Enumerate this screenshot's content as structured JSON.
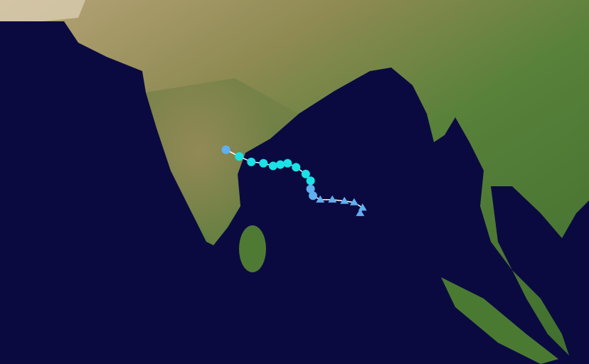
{
  "map": {
    "colors": {
      "ocean": "#0b0a40",
      "land_green": "#4f7a34",
      "land_tan": "#a8955f",
      "track_line": "#ffffff",
      "tropical_storm": "#19e3e6",
      "depression": "#5fb0f0",
      "low": "#5fb0f0"
    },
    "track": [
      {
        "lat": 8.9,
        "lon": 90.2,
        "marker": "triangle",
        "category": "low"
      },
      {
        "lat": 9.3,
        "lon": 90.4,
        "marker": "triangle",
        "category": "low"
      },
      {
        "lat": 9.7,
        "lon": 89.7,
        "marker": "triangle",
        "category": "low"
      },
      {
        "lat": 9.8,
        "lon": 88.9,
        "marker": "triangle",
        "category": "low"
      },
      {
        "lat": 9.9,
        "lon": 87.9,
        "marker": "triangle",
        "category": "low"
      },
      {
        "lat": 9.9,
        "lon": 86.9,
        "marker": "triangle",
        "category": "low"
      },
      {
        "lat": 10.2,
        "lon": 86.3,
        "marker": "circle",
        "category": "depression"
      },
      {
        "lat": 10.7,
        "lon": 86.1,
        "marker": "circle",
        "category": "depression"
      },
      {
        "lat": 11.3,
        "lon": 86.1,
        "marker": "circle",
        "category": "tropical_storm"
      },
      {
        "lat": 11.8,
        "lon": 85.7,
        "marker": "circle",
        "category": "tropical_storm"
      },
      {
        "lat": 12.3,
        "lon": 84.9,
        "marker": "circle",
        "category": "tropical_storm"
      },
      {
        "lat": 12.6,
        "lon": 84.2,
        "marker": "circle",
        "category": "tropical_storm"
      },
      {
        "lat": 12.5,
        "lon": 83.6,
        "marker": "circle",
        "category": "tropical_storm"
      },
      {
        "lat": 12.4,
        "lon": 83.0,
        "marker": "circle",
        "category": "tropical_storm"
      },
      {
        "lat": 12.6,
        "lon": 82.2,
        "marker": "circle",
        "category": "tropical_storm"
      },
      {
        "lat": 12.7,
        "lon": 81.2,
        "marker": "circle",
        "category": "tropical_storm"
      },
      {
        "lat": 13.1,
        "lon": 80.2,
        "marker": "circle",
        "category": "tropical_storm"
      },
      {
        "lat": 13.6,
        "lon": 79.1,
        "marker": "circle",
        "category": "depression"
      }
    ]
  }
}
